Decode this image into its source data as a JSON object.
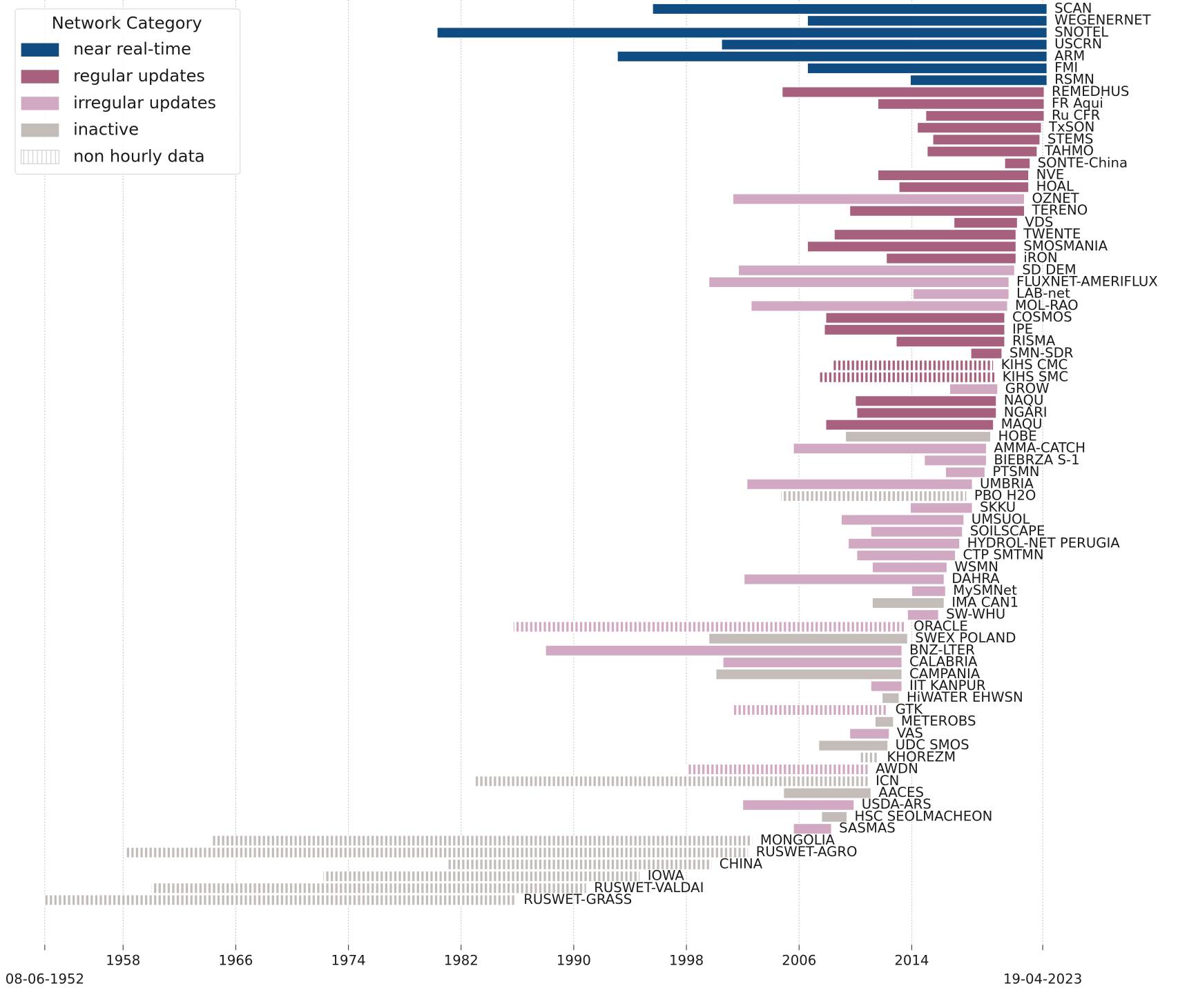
{
  "chart_data": {
    "type": "range-bar",
    "legend_title": "Network Category",
    "legend_position": "upper left",
    "series": [
      {
        "name": "near real-time",
        "color": "#0f4c81"
      },
      {
        "name": "regular updates",
        "color": "#a7617e"
      },
      {
        "name": "irregular updates",
        "color": "#d1a9c3"
      },
      {
        "name": "inactive",
        "color": "#c4bcb9"
      }
    ],
    "non_hourly_label": "non hourly data",
    "categories": [
      "SCAN",
      "WEGENERNET",
      "SNOTEL",
      "USCRN",
      "ARM",
      "FMI",
      "RSMN",
      "REMEDHUS",
      "FR Aqui",
      "Ru CFR",
      "TxSON",
      "STEMS",
      "TAHMO",
      "SONTE-China",
      "NVE",
      "HOAL",
      "OZNET",
      "TERENO",
      "VDS",
      "TWENTE",
      "SMOSMANIA",
      "iRON",
      "SD DEM",
      "FLUXNET-AMERIFLUX",
      "LAB-net",
      "MOL-RAO",
      "COSMOS",
      "IPE",
      "RISMA",
      "SMN-SDR",
      "KIHS CMC",
      "KIHS SMC",
      "GROW",
      "NAQU",
      "NGARI",
      "MAQU",
      "HOBE",
      "AMMA-CATCH",
      "BIEBRZA S-1",
      "PTSMN",
      "UMBRIA",
      "PBO H2O",
      "SKKU",
      "UMSUOL",
      "SOILSCAPE",
      "HYDROL-NET PERUGIA",
      "CTP SMTMN",
      "WSMN",
      "DAHRA",
      "MySMNet",
      "IMA CAN1",
      "SW-WHU",
      "ORACLE",
      "SWEX POLAND",
      "BNZ-LTER",
      "CALABRIA",
      "CAMPANIA",
      "IIT KANPUR",
      "HiWATER EHWSN",
      "GTK",
      "METEROBS",
      "VAS",
      "UDC SMOS",
      "KHOREZM",
      "AWDN",
      "ICN",
      "AACES",
      "USDA-ARS",
      "HSC SEOLMACHEON",
      "SASMAS",
      "MONGOLIA",
      "RUSWET-AGRO",
      "CHINA",
      "IOWA",
      "RUSWET-VALDAI",
      "RUSWET-GRASS"
    ],
    "start": [
      1995.6,
      2006.6,
      1980.3,
      2000.5,
      1993.1,
      2006.6,
      2013.9,
      2004.8,
      2011.6,
      2015.0,
      2014.4,
      2015.5,
      2015.1,
      2020.6,
      2011.6,
      2013.1,
      2001.3,
      2009.6,
      2017.0,
      2008.5,
      2006.6,
      2012.2,
      2001.7,
      1999.6,
      2014.1,
      2002.6,
      2007.9,
      2007.8,
      2012.9,
      2018.2,
      2008.4,
      2007.4,
      2016.7,
      2010.0,
      2010.1,
      2007.9,
      2009.3,
      2005.6,
      2014.9,
      2016.4,
      2002.3,
      2004.7,
      2013.9,
      2009.0,
      2011.1,
      2009.5,
      2010.1,
      2011.2,
      2002.1,
      2014.0,
      2011.2,
      2013.7,
      1985.7,
      1999.6,
      1988.0,
      2000.6,
      2000.1,
      2011.1,
      2011.9,
      2001.3,
      2011.4,
      2009.6,
      2007.4,
      2010.2,
      1998.0,
      1982.9,
      2004.9,
      2002.0,
      2007.6,
      2005.6,
      1964.2,
      1958.2,
      1981.0,
      1972.2,
      1960.0,
      1952.4
    ],
    "end": [
      2023.6,
      2023.6,
      2023.6,
      2023.6,
      2023.6,
      2023.6,
      2023.6,
      2023.4,
      2023.4,
      2023.4,
      2023.2,
      2023.1,
      2022.9,
      2022.4,
      2022.3,
      2022.3,
      2022.0,
      2022.0,
      2021.5,
      2021.4,
      2021.4,
      2021.4,
      2021.3,
      2020.9,
      2020.9,
      2020.8,
      2020.6,
      2020.6,
      2020.6,
      2020.4,
      2019.8,
      2019.9,
      2020.1,
      2020.0,
      2020.0,
      2019.8,
      2019.6,
      2019.3,
      2019.3,
      2019.2,
      2018.3,
      2017.9,
      2018.3,
      2017.7,
      2017.6,
      2017.4,
      2017.1,
      2016.5,
      2016.3,
      2016.4,
      2016.3,
      2015.9,
      2013.6,
      2013.7,
      2013.3,
      2013.3,
      2013.3,
      2013.3,
      2013.1,
      2012.3,
      2012.7,
      2012.4,
      2012.3,
      2011.7,
      2010.9,
      2010.9,
      2011.1,
      2009.9,
      2009.4,
      2008.3,
      2002.7,
      2002.4,
      1999.8,
      1994.7,
      1990.9,
      1985.9
    ],
    "status": [
      "near real-time",
      "near real-time",
      "near real-time",
      "near real-time",
      "near real-time",
      "near real-time",
      "near real-time",
      "regular updates",
      "regular updates",
      "regular updates",
      "regular updates",
      "regular updates",
      "regular updates",
      "regular updates",
      "regular updates",
      "regular updates",
      "irregular updates",
      "regular updates",
      "regular updates",
      "regular updates",
      "regular updates",
      "regular updates",
      "irregular updates",
      "irregular updates",
      "irregular updates",
      "irregular updates",
      "regular updates",
      "regular updates",
      "regular updates",
      "regular updates",
      "regular updates",
      "regular updates",
      "irregular updates",
      "regular updates",
      "regular updates",
      "regular updates",
      "inactive",
      "irregular updates",
      "irregular updates",
      "irregular updates",
      "irregular updates",
      "inactive",
      "irregular updates",
      "irregular updates",
      "irregular updates",
      "irregular updates",
      "irregular updates",
      "irregular updates",
      "irregular updates",
      "irregular updates",
      "inactive",
      "irregular updates",
      "irregular updates",
      "inactive",
      "irregular updates",
      "irregular updates",
      "inactive",
      "irregular updates",
      "inactive",
      "irregular updates",
      "inactive",
      "irregular updates",
      "inactive",
      "inactive",
      "irregular updates",
      "inactive",
      "inactive",
      "irregular updates",
      "inactive",
      "irregular updates",
      "inactive",
      "inactive",
      "inactive",
      "inactive",
      "inactive",
      "inactive"
    ],
    "hourly": [
      true,
      true,
      true,
      true,
      true,
      true,
      true,
      true,
      true,
      true,
      true,
      true,
      true,
      true,
      true,
      true,
      true,
      true,
      true,
      true,
      true,
      true,
      true,
      true,
      true,
      true,
      true,
      true,
      true,
      true,
      false,
      false,
      true,
      true,
      true,
      true,
      true,
      true,
      true,
      true,
      true,
      false,
      true,
      true,
      true,
      true,
      true,
      true,
      true,
      true,
      true,
      true,
      false,
      true,
      true,
      true,
      true,
      true,
      true,
      false,
      true,
      true,
      true,
      false,
      false,
      false,
      true,
      true,
      true,
      true,
      false,
      false,
      false,
      false,
      false,
      false
    ],
    "xlim": [
      1950.3,
      2033
    ],
    "xticks": [
      {
        "value": 1952.44,
        "label": "08-06-1952"
      },
      1958,
      1966,
      1974,
      1982,
      1990,
      1998,
      2006,
      2014,
      {
        "value": 2023.3,
        "label": "19-04-2023"
      }
    ],
    "grid": true
  }
}
